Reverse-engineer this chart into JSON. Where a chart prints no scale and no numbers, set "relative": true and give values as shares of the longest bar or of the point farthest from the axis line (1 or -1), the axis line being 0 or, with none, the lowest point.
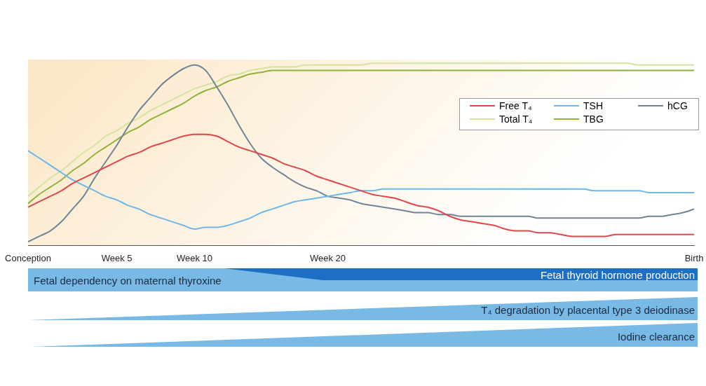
{
  "chart_data": {
    "type": "line",
    "relative": true,
    "categories": [
      "Conception",
      null,
      null,
      null,
      null,
      null,
      null,
      null,
      "Week 5",
      null,
      null,
      null,
      null,
      null,
      null,
      "Week 10",
      null,
      null,
      null,
      null,
      null,
      null,
      null,
      null,
      null,
      null,
      null,
      "Week 20",
      null,
      null,
      null,
      null,
      null,
      null,
      null,
      null,
      null,
      null,
      null,
      null,
      null,
      null,
      null,
      null,
      null,
      null,
      null,
      null,
      null,
      null,
      null,
      null,
      null,
      null,
      null,
      null,
      null,
      null,
      null,
      null,
      "Birth"
    ],
    "tick_labels": "x",
    "grid": false,
    "marker": "none",
    "line_style": "solid",
    "legend": "top right",
    "series": [
      {
        "name": "Free T₄",
        "color": "#e0474c",
        "values": [
          0.21,
          0.24,
          0.27,
          0.3,
          0.34,
          0.37,
          0.4,
          0.43,
          0.46,
          0.49,
          0.51,
          0.54,
          0.56,
          0.58,
          0.6,
          0.61,
          0.61,
          0.6,
          0.57,
          0.54,
          0.52,
          0.5,
          0.48,
          0.45,
          0.43,
          0.41,
          0.38,
          0.36,
          0.34,
          0.32,
          0.3,
          0.28,
          0.27,
          0.26,
          0.24,
          0.22,
          0.21,
          0.19,
          0.16,
          0.14,
          0.13,
          0.12,
          0.11,
          0.09,
          0.08,
          0.08,
          0.07,
          0.07,
          0.06,
          0.05,
          0.05,
          0.05,
          0.05,
          0.06,
          0.06,
          0.06,
          0.06,
          0.06,
          0.06,
          0.06,
          0.06
        ]
      },
      {
        "name": "TSH",
        "color": "#6fb7e8",
        "values": [
          0.52,
          0.48,
          0.44,
          0.4,
          0.36,
          0.33,
          0.3,
          0.27,
          0.25,
          0.22,
          0.2,
          0.17,
          0.15,
          0.13,
          0.11,
          0.09,
          0.1,
          0.1,
          0.11,
          0.13,
          0.15,
          0.18,
          0.2,
          0.22,
          0.24,
          0.25,
          0.26,
          0.27,
          0.28,
          0.29,
          0.3,
          0.3,
          0.31,
          0.31,
          0.31,
          0.31,
          0.31,
          0.31,
          0.31,
          0.31,
          0.31,
          0.31,
          0.31,
          0.31,
          0.31,
          0.31,
          0.31,
          0.31,
          0.31,
          0.31,
          0.31,
          0.3,
          0.3,
          0.3,
          0.3,
          0.3,
          0.29,
          0.29,
          0.29,
          0.29,
          0.29
        ]
      },
      {
        "name": "hCG",
        "color": "#6f8595",
        "values": [
          0.02,
          0.05,
          0.08,
          0.13,
          0.2,
          0.27,
          0.37,
          0.46,
          0.55,
          0.65,
          0.74,
          0.81,
          0.88,
          0.93,
          0.97,
          0.99,
          0.96,
          0.87,
          0.77,
          0.66,
          0.56,
          0.48,
          0.43,
          0.39,
          0.35,
          0.32,
          0.3,
          0.27,
          0.26,
          0.25,
          0.23,
          0.22,
          0.21,
          0.2,
          0.19,
          0.18,
          0.18,
          0.17,
          0.17,
          0.16,
          0.16,
          0.16,
          0.16,
          0.16,
          0.16,
          0.16,
          0.15,
          0.15,
          0.15,
          0.15,
          0.15,
          0.15,
          0.15,
          0.15,
          0.15,
          0.15,
          0.16,
          0.16,
          0.17,
          0.18,
          0.2
        ]
      },
      {
        "name": "Total T₄",
        "color": "#d4e4a0",
        "values": [
          0.27,
          0.32,
          0.37,
          0.41,
          0.46,
          0.51,
          0.55,
          0.6,
          0.63,
          0.67,
          0.7,
          0.74,
          0.77,
          0.8,
          0.83,
          0.86,
          0.88,
          0.9,
          0.93,
          0.94,
          0.96,
          0.97,
          0.98,
          0.98,
          0.98,
          0.99,
          0.99,
          0.99,
          0.99,
          0.99,
          0.99,
          1.0,
          1.0,
          1.0,
          1.0,
          1.0,
          1.0,
          1.0,
          1.0,
          1.0,
          1.0,
          1.0,
          1.0,
          1.0,
          1.0,
          1.0,
          1.0,
          1.0,
          1.0,
          1.0,
          1.0,
          1.0,
          1.0,
          1.0,
          1.0,
          0.99,
          0.99,
          0.99,
          0.99,
          0.99,
          0.99
        ]
      },
      {
        "name": "TBG",
        "color": "#8db33a",
        "values": [
          0.23,
          0.28,
          0.32,
          0.36,
          0.41,
          0.45,
          0.5,
          0.54,
          0.58,
          0.62,
          0.65,
          0.69,
          0.72,
          0.75,
          0.78,
          0.82,
          0.85,
          0.87,
          0.9,
          0.92,
          0.94,
          0.95,
          0.96,
          0.96,
          0.96,
          0.96,
          0.96,
          0.96,
          0.96,
          0.96,
          0.96,
          0.96,
          0.96,
          0.96,
          0.96,
          0.96,
          0.96,
          0.96,
          0.96,
          0.96,
          0.96,
          0.96,
          0.96,
          0.96,
          0.96,
          0.96,
          0.96,
          0.96,
          0.96,
          0.96,
          0.96,
          0.96,
          0.96,
          0.96,
          0.96,
          0.96,
          0.96,
          0.96,
          0.96,
          0.96,
          0.96
        ]
      }
    ],
    "annotations": [
      "Fetal dependency on maternal thyroxine",
      "Fetal thyroid hormone production",
      "T₄ degradation by placental type 3 deiodinase",
      "Iodine clearance"
    ]
  }
}
